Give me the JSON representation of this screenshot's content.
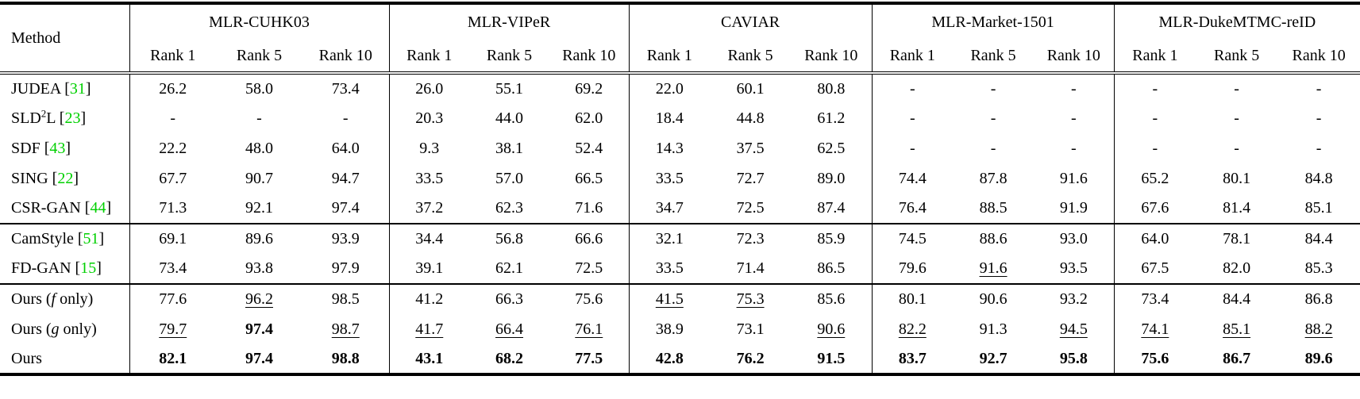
{
  "colors": {
    "citation": "#00d000",
    "text": "#000000",
    "background": "#ffffff"
  },
  "table": {
    "method_header": "Method",
    "groups": [
      {
        "label": "MLR-CUHK03",
        "ranks": [
          "Rank 1",
          "Rank 5",
          "Rank 10"
        ]
      },
      {
        "label": "MLR-VIPeR",
        "ranks": [
          "Rank 1",
          "Rank 5",
          "Rank 10"
        ]
      },
      {
        "label": "CAVIAR",
        "ranks": [
          "Rank 1",
          "Rank 5",
          "Rank 10"
        ]
      },
      {
        "label": "MLR-Market-1501",
        "ranks": [
          "Rank 1",
          "Rank 5",
          "Rank 10"
        ]
      },
      {
        "label": "MLR-DukeMTMC-reID",
        "ranks": [
          "Rank 1",
          "Rank 5",
          "Rank 10"
        ]
      }
    ],
    "style_legend": {
      "n": "normal",
      "b": "bold-best",
      "u": "underline-second-best",
      "g": "green-citation",
      "i": "italic",
      "s": "superscript"
    },
    "sections": [
      {
        "rows": [
          {
            "method": [
              [
                "JUDEA [",
                "n"
              ],
              [
                "31",
                "g"
              ],
              [
                "]",
                "n"
              ]
            ],
            "values": [
              [
                "26.2",
                "n"
              ],
              [
                "58.0",
                "n"
              ],
              [
                "73.4",
                "n"
              ],
              [
                "26.0",
                "n"
              ],
              [
                "55.1",
                "n"
              ],
              [
                "69.2",
                "n"
              ],
              [
                "22.0",
                "n"
              ],
              [
                "60.1",
                "n"
              ],
              [
                "80.8",
                "n"
              ],
              [
                "-",
                "n"
              ],
              [
                "-",
                "n"
              ],
              [
                "-",
                "n"
              ],
              [
                "-",
                "n"
              ],
              [
                "-",
                "n"
              ],
              [
                "-",
                "n"
              ]
            ]
          },
          {
            "method": [
              [
                "SLD",
                "n"
              ],
              [
                "2",
                "s"
              ],
              [
                "L [",
                "n"
              ],
              [
                "23",
                "g"
              ],
              [
                "]",
                "n"
              ]
            ],
            "values": [
              [
                "-",
                "n"
              ],
              [
                "-",
                "n"
              ],
              [
                "-",
                "n"
              ],
              [
                "20.3",
                "n"
              ],
              [
                "44.0",
                "n"
              ],
              [
                "62.0",
                "n"
              ],
              [
                "18.4",
                "n"
              ],
              [
                "44.8",
                "n"
              ],
              [
                "61.2",
                "n"
              ],
              [
                "-",
                "n"
              ],
              [
                "-",
                "n"
              ],
              [
                "-",
                "n"
              ],
              [
                "-",
                "n"
              ],
              [
                "-",
                "n"
              ],
              [
                "-",
                "n"
              ]
            ]
          },
          {
            "method": [
              [
                "SDF [",
                "n"
              ],
              [
                "43",
                "g"
              ],
              [
                "]",
                "n"
              ]
            ],
            "values": [
              [
                "22.2",
                "n"
              ],
              [
                "48.0",
                "n"
              ],
              [
                "64.0",
                "n"
              ],
              [
                "9.3",
                "n"
              ],
              [
                "38.1",
                "n"
              ],
              [
                "52.4",
                "n"
              ],
              [
                "14.3",
                "n"
              ],
              [
                "37.5",
                "n"
              ],
              [
                "62.5",
                "n"
              ],
              [
                "-",
                "n"
              ],
              [
                "-",
                "n"
              ],
              [
                "-",
                "n"
              ],
              [
                "-",
                "n"
              ],
              [
                "-",
                "n"
              ],
              [
                "-",
                "n"
              ]
            ]
          },
          {
            "method": [
              [
                "SING [",
                "n"
              ],
              [
                "22",
                "g"
              ],
              [
                "]",
                "n"
              ]
            ],
            "values": [
              [
                "67.7",
                "n"
              ],
              [
                "90.7",
                "n"
              ],
              [
                "94.7",
                "n"
              ],
              [
                "33.5",
                "n"
              ],
              [
                "57.0",
                "n"
              ],
              [
                "66.5",
                "n"
              ],
              [
                "33.5",
                "n"
              ],
              [
                "72.7",
                "n"
              ],
              [
                "89.0",
                "n"
              ],
              [
                "74.4",
                "n"
              ],
              [
                "87.8",
                "n"
              ],
              [
                "91.6",
                "n"
              ],
              [
                "65.2",
                "n"
              ],
              [
                "80.1",
                "n"
              ],
              [
                "84.8",
                "n"
              ]
            ]
          },
          {
            "method": [
              [
                "CSR-GAN [",
                "n"
              ],
              [
                "44",
                "g"
              ],
              [
                "]",
                "n"
              ]
            ],
            "values": [
              [
                "71.3",
                "n"
              ],
              [
                "92.1",
                "n"
              ],
              [
                "97.4",
                "n"
              ],
              [
                "37.2",
                "n"
              ],
              [
                "62.3",
                "n"
              ],
              [
                "71.6",
                "n"
              ],
              [
                "34.7",
                "n"
              ],
              [
                "72.5",
                "n"
              ],
              [
                "87.4",
                "n"
              ],
              [
                "76.4",
                "n"
              ],
              [
                "88.5",
                "n"
              ],
              [
                "91.9",
                "n"
              ],
              [
                "67.6",
                "n"
              ],
              [
                "81.4",
                "n"
              ],
              [
                "85.1",
                "n"
              ]
            ]
          }
        ]
      },
      {
        "rows": [
          {
            "method": [
              [
                "CamStyle [",
                "n"
              ],
              [
                "51",
                "g"
              ],
              [
                "]",
                "n"
              ]
            ],
            "values": [
              [
                "69.1",
                "n"
              ],
              [
                "89.6",
                "n"
              ],
              [
                "93.9",
                "n"
              ],
              [
                "34.4",
                "n"
              ],
              [
                "56.8",
                "n"
              ],
              [
                "66.6",
                "n"
              ],
              [
                "32.1",
                "n"
              ],
              [
                "72.3",
                "n"
              ],
              [
                "85.9",
                "n"
              ],
              [
                "74.5",
                "n"
              ],
              [
                "88.6",
                "n"
              ],
              [
                "93.0",
                "n"
              ],
              [
                "64.0",
                "n"
              ],
              [
                "78.1",
                "n"
              ],
              [
                "84.4",
                "n"
              ]
            ]
          },
          {
            "method": [
              [
                "FD-GAN [",
                "n"
              ],
              [
                "15",
                "g"
              ],
              [
                "]",
                "n"
              ]
            ],
            "values": [
              [
                "73.4",
                "n"
              ],
              [
                "93.8",
                "n"
              ],
              [
                "97.9",
                "n"
              ],
              [
                "39.1",
                "n"
              ],
              [
                "62.1",
                "n"
              ],
              [
                "72.5",
                "n"
              ],
              [
                "33.5",
                "n"
              ],
              [
                "71.4",
                "n"
              ],
              [
                "86.5",
                "n"
              ],
              [
                "79.6",
                "n"
              ],
              [
                "91.6",
                "u"
              ],
              [
                "93.5",
                "n"
              ],
              [
                "67.5",
                "n"
              ],
              [
                "82.0",
                "n"
              ],
              [
                "85.3",
                "n"
              ]
            ]
          }
        ]
      },
      {
        "rows": [
          {
            "method": [
              [
                "Ours (",
                "n"
              ],
              [
                "f",
                "i"
              ],
              [
                " only)",
                "n"
              ]
            ],
            "values": [
              [
                "77.6",
                "n"
              ],
              [
                "96.2",
                "u"
              ],
              [
                "98.5",
                "n"
              ],
              [
                "41.2",
                "n"
              ],
              [
                "66.3",
                "n"
              ],
              [
                "75.6",
                "n"
              ],
              [
                "41.5",
                "u"
              ],
              [
                "75.3",
                "u"
              ],
              [
                "85.6",
                "n"
              ],
              [
                "80.1",
                "n"
              ],
              [
                "90.6",
                "n"
              ],
              [
                "93.2",
                "n"
              ],
              [
                "73.4",
                "n"
              ],
              [
                "84.4",
                "n"
              ],
              [
                "86.8",
                "n"
              ]
            ]
          },
          {
            "method": [
              [
                "Ours (",
                "n"
              ],
              [
                "g",
                "i"
              ],
              [
                " only)",
                "n"
              ]
            ],
            "values": [
              [
                "79.7",
                "u"
              ],
              [
                "97.4",
                "b"
              ],
              [
                "98.7",
                "u"
              ],
              [
                "41.7",
                "u"
              ],
              [
                "66.4",
                "u"
              ],
              [
                "76.1",
                "u"
              ],
              [
                "38.9",
                "n"
              ],
              [
                "73.1",
                "n"
              ],
              [
                "90.6",
                "u"
              ],
              [
                "82.2",
                "u"
              ],
              [
                "91.3",
                "n"
              ],
              [
                "94.5",
                "u"
              ],
              [
                "74.1",
                "u"
              ],
              [
                "85.1",
                "u"
              ],
              [
                "88.2",
                "u"
              ]
            ]
          },
          {
            "method": [
              [
                "Ours",
                "n"
              ]
            ],
            "values": [
              [
                "82.1",
                "b"
              ],
              [
                "97.4",
                "b"
              ],
              [
                "98.8",
                "b"
              ],
              [
                "43.1",
                "b"
              ],
              [
                "68.2",
                "b"
              ],
              [
                "77.5",
                "b"
              ],
              [
                "42.8",
                "b"
              ],
              [
                "76.2",
                "b"
              ],
              [
                "91.5",
                "b"
              ],
              [
                "83.7",
                "b"
              ],
              [
                "92.7",
                "b"
              ],
              [
                "95.8",
                "b"
              ],
              [
                "75.6",
                "b"
              ],
              [
                "86.7",
                "b"
              ],
              [
                "89.6",
                "b"
              ]
            ]
          }
        ]
      }
    ]
  }
}
